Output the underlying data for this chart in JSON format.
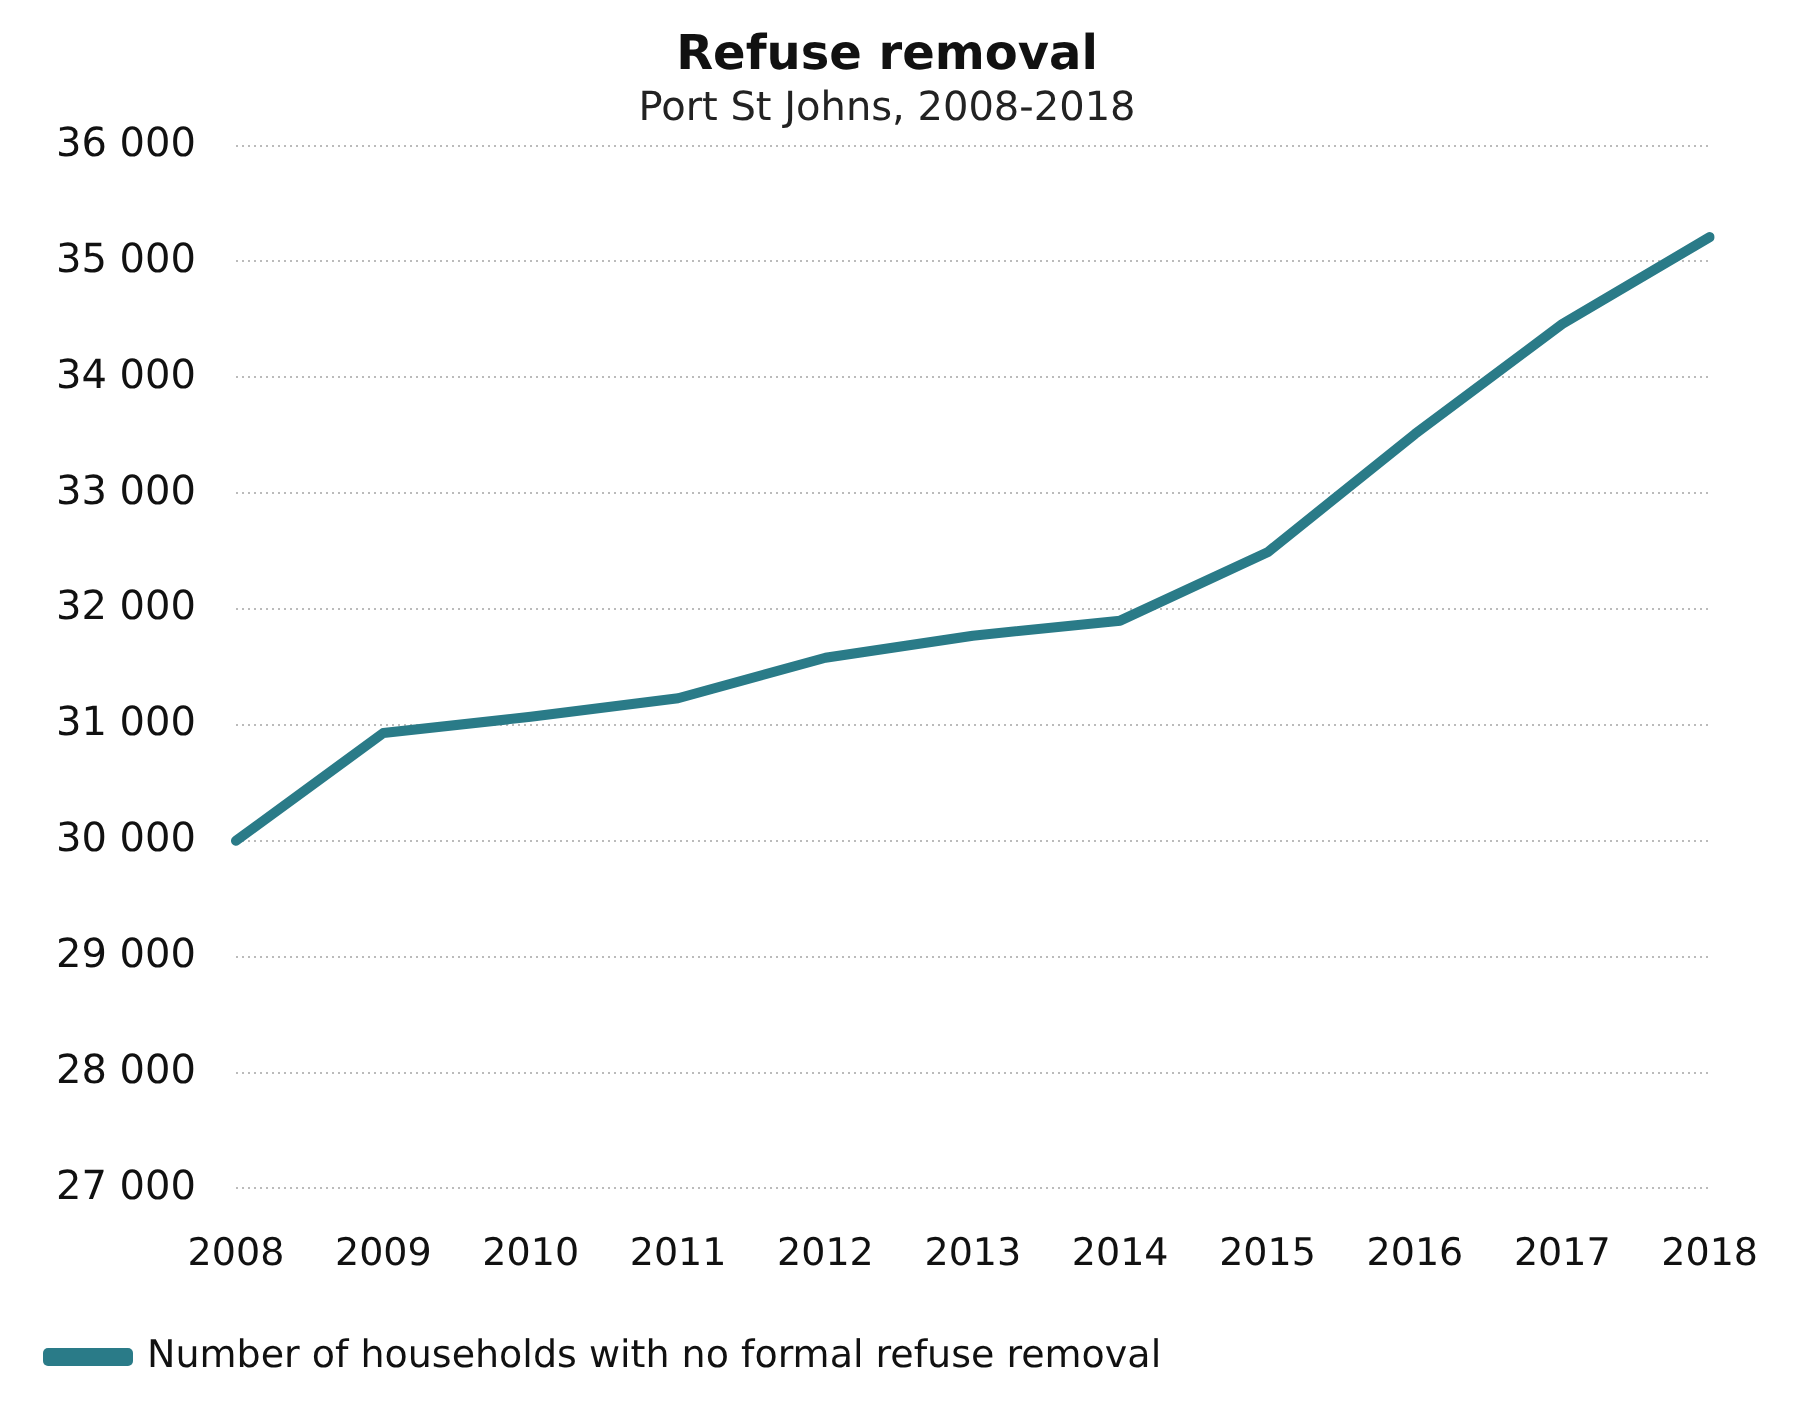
{
  "chart_data": {
    "type": "line",
    "title": "Refuse removal",
    "subtitle": "Port St Johns, 2008-2018",
    "categories": [
      "2008",
      "2009",
      "2010",
      "2011",
      "2012",
      "2013",
      "2014",
      "2015",
      "2016",
      "2017",
      "2018"
    ],
    "series": [
      {
        "name": "Number of households with no formal refuse removal",
        "color": "#2a7b88",
        "values": [
          30000,
          30930,
          31070,
          31230,
          31580,
          31770,
          31900,
          32490,
          33510,
          34460,
          35210
        ]
      }
    ],
    "ylim": [
      27000,
      36000
    ],
    "yticks": [
      {
        "value": 27000,
        "label": "27 000"
      },
      {
        "value": 28000,
        "label": "28 000"
      },
      {
        "value": 29000,
        "label": "29 000"
      },
      {
        "value": 30000,
        "label": "30 000"
      },
      {
        "value": 31000,
        "label": "31 000"
      },
      {
        "value": 32000,
        "label": "32 000"
      },
      {
        "value": 33000,
        "label": "33 000"
      },
      {
        "value": 34000,
        "label": "34 000"
      },
      {
        "value": 35000,
        "label": "35 000"
      },
      {
        "value": 36000,
        "label": "36 000"
      }
    ],
    "grid": "y",
    "legend": "bottom",
    "marker": "none",
    "line_style": "solid"
  }
}
